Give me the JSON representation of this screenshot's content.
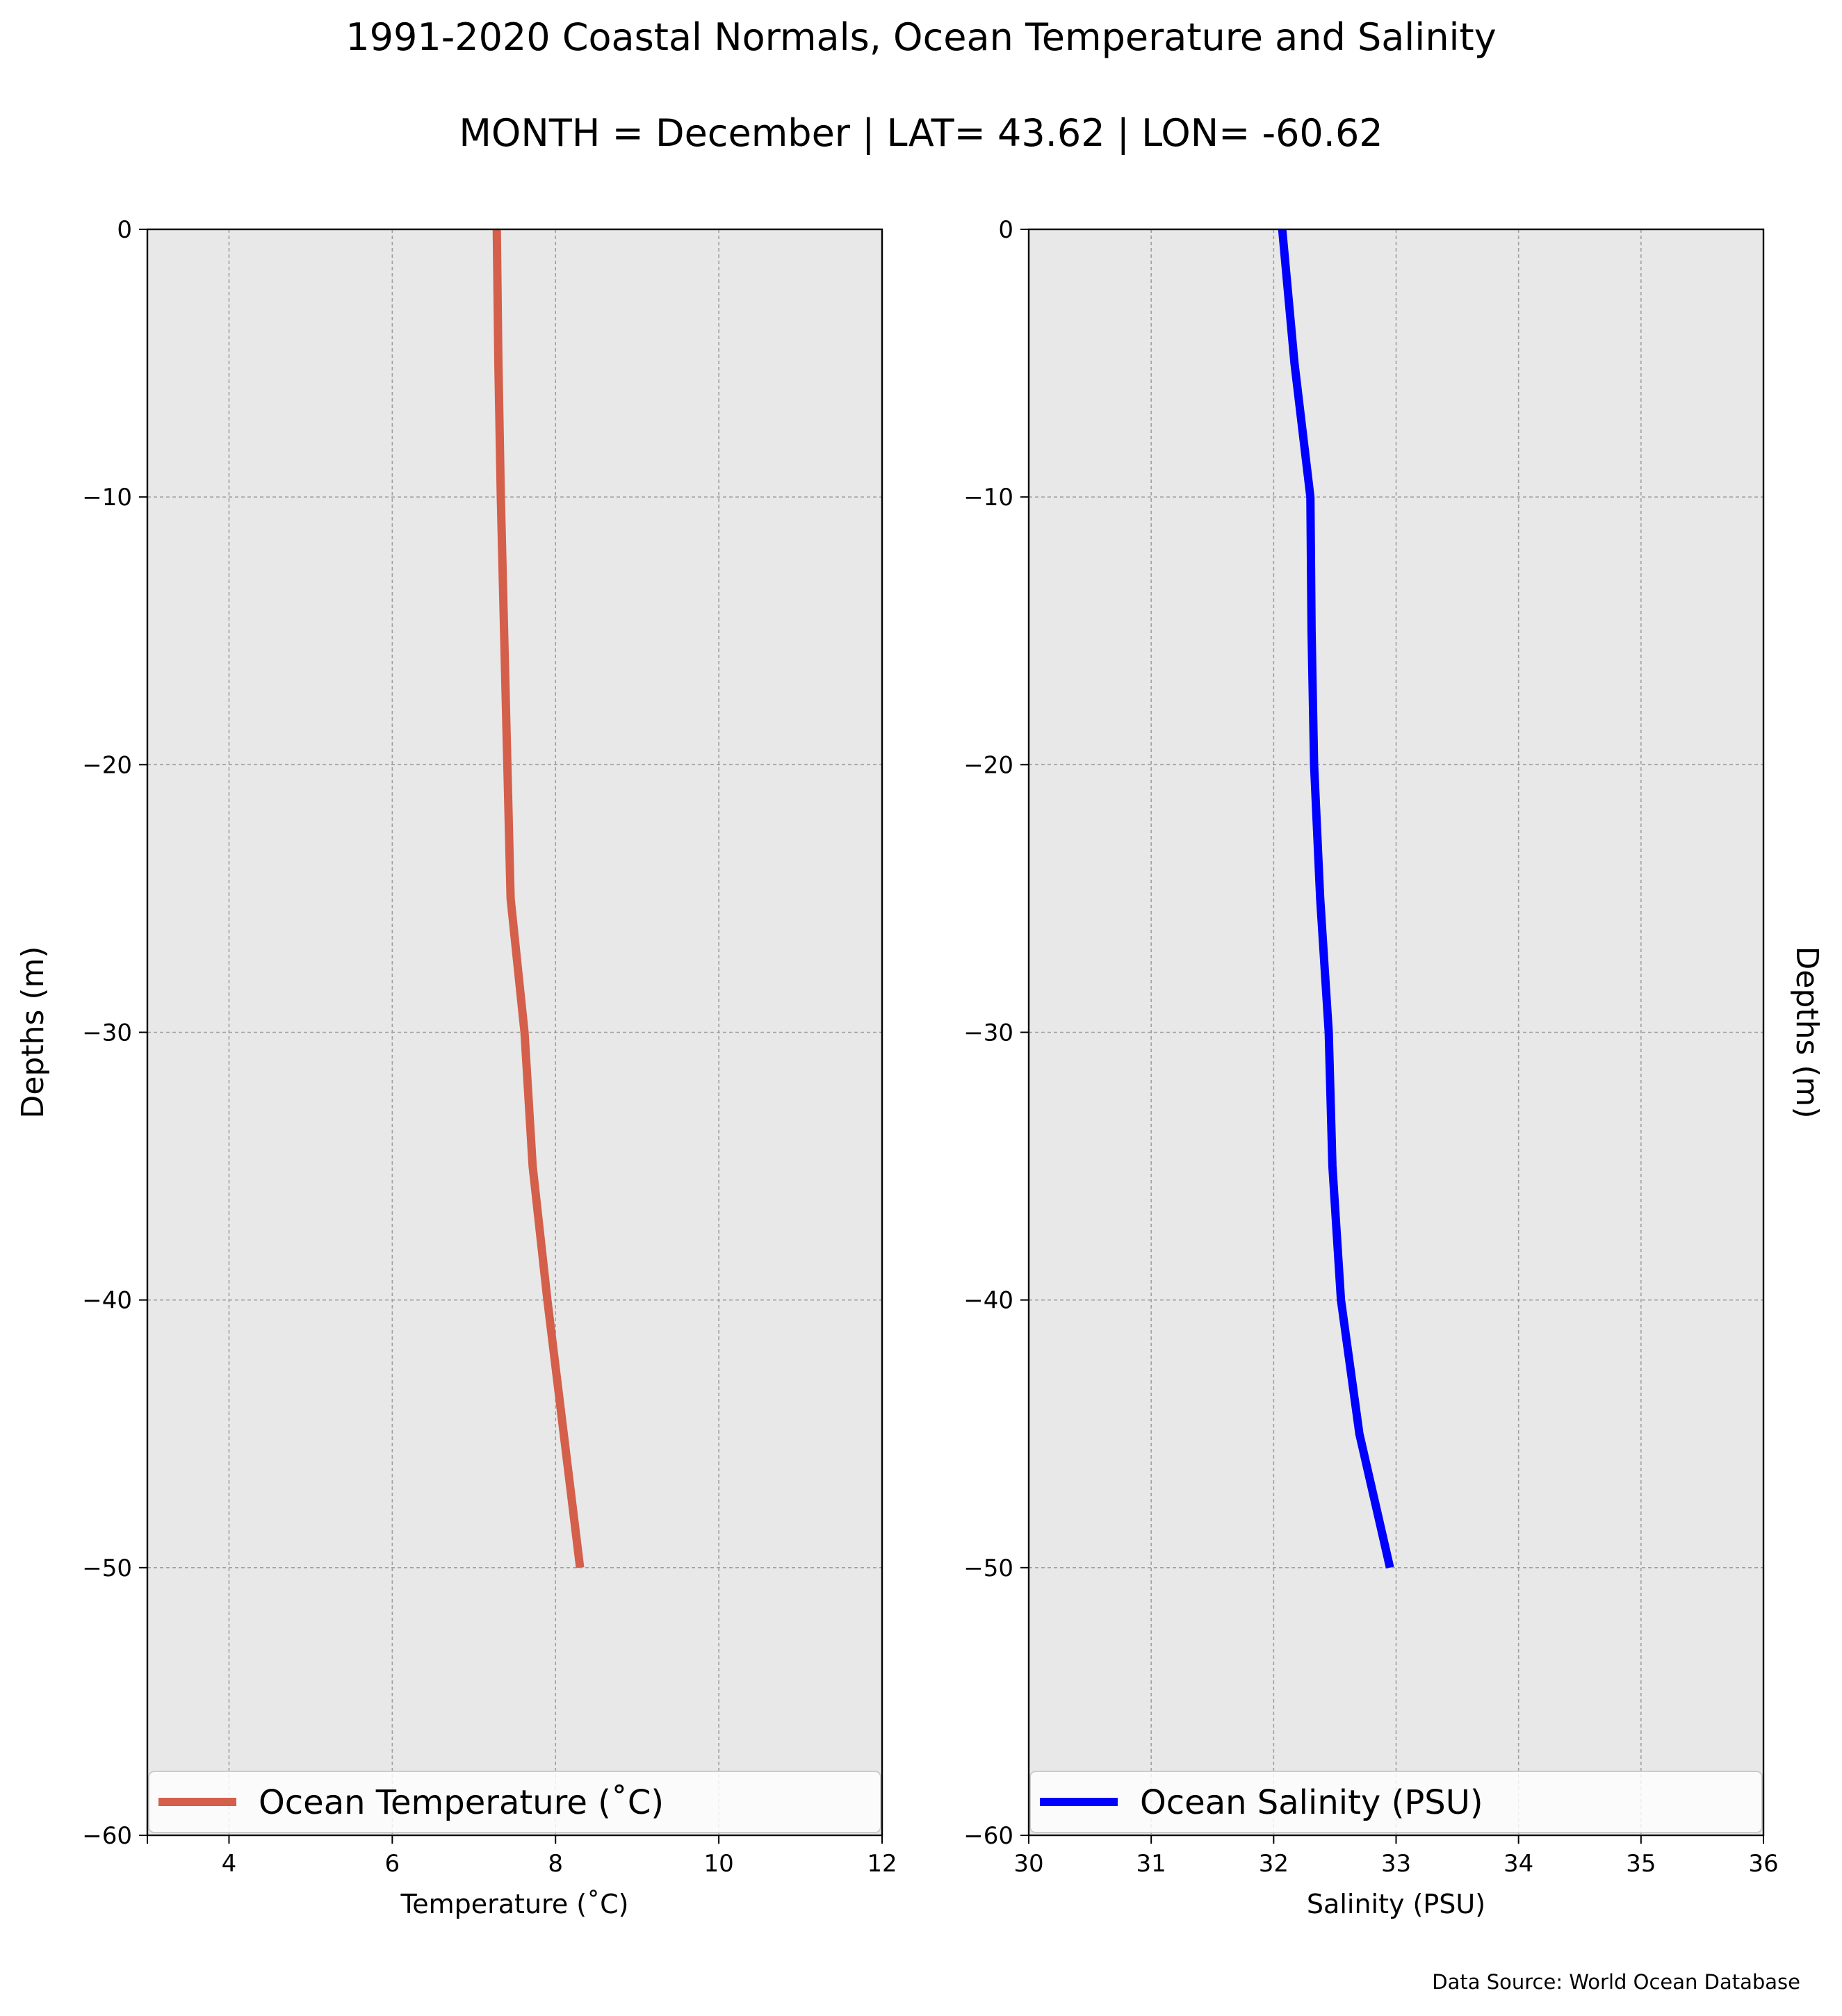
{
  "figure": {
    "title_line1": "1991-2020 Coastal Normals, Ocean Temperature and Salinity",
    "title_line2": "MONTH = December | LAT= 43.62 | LON= -60.62",
    "source_note": "Data Source: World Ocean Database",
    "background_color": "#e8e8e8",
    "grid": true
  },
  "chart_data": [
    {
      "type": "line",
      "xlabel": "Temperature ($^\\circ$C)",
      "xlabel_display": "Temperature (˚C)",
      "ylabel": "Depths (m)",
      "xlim": [
        3,
        12
      ],
      "ylim": [
        -60,
        0
      ],
      "xticks": [
        4,
        6,
        8,
        10,
        12
      ],
      "yticks": [
        0,
        -10,
        -20,
        -30,
        -40,
        -50,
        -60
      ],
      "legend_position": "lower center",
      "series": [
        {
          "name": "Ocean Temperature (˚C)",
          "color": "#d45f4a",
          "x": [
            7.28,
            7.3,
            7.33,
            7.37,
            7.41,
            7.45,
            7.62,
            7.72,
            7.9,
            8.1,
            8.3
          ],
          "y": [
            0,
            -5,
            -10,
            -15,
            -20,
            -25,
            -30,
            -35,
            -40,
            -45,
            -50
          ]
        }
      ]
    },
    {
      "type": "line",
      "xlabel": "Salinity (PSU)",
      "ylabel": "Depths (m)",
      "ylabel_side": "right",
      "xlim": [
        30,
        36
      ],
      "ylim": [
        -60,
        0
      ],
      "xticks": [
        30,
        31,
        32,
        33,
        34,
        35,
        36
      ],
      "yticks": [
        0,
        -10,
        -20,
        -30,
        -40,
        -50,
        -60
      ],
      "legend_position": "lower center",
      "series": [
        {
          "name": "Ocean Salinity (PSU)",
          "color": "#0000ff",
          "x": [
            32.07,
            32.17,
            32.3,
            32.31,
            32.33,
            32.38,
            32.45,
            32.48,
            32.55,
            32.7,
            32.95
          ],
          "y": [
            0,
            -5,
            -10,
            -15,
            -20,
            -25,
            -30,
            -35,
            -40,
            -45,
            -50
          ]
        }
      ]
    }
  ]
}
